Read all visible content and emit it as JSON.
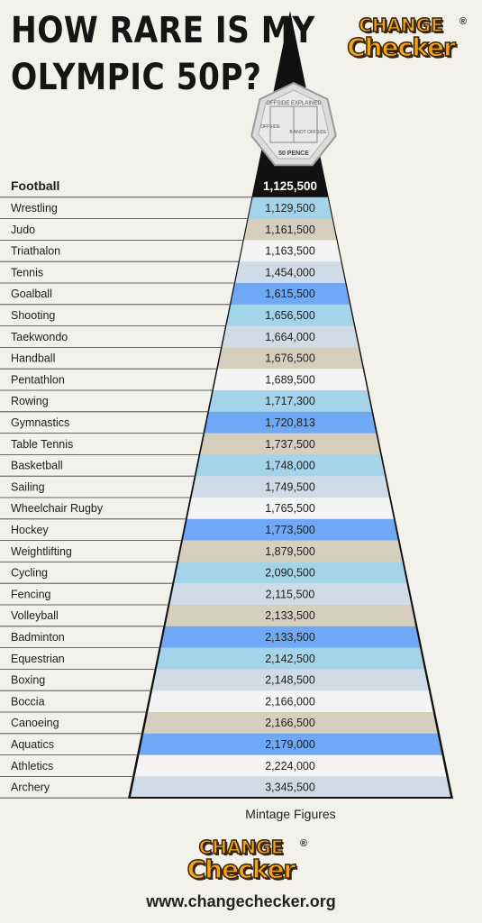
{
  "title_lines": [
    "HOW RARE IS MY",
    "OLYMPIC 50P?"
  ],
  "logo": {
    "line1": "CHANGE",
    "line2": "Checker",
    "reg": "®"
  },
  "coin": {
    "top_text": "OFFSIDE EXPLAINED",
    "left_text": "OFFSIDE",
    "right_text": "B ANOT OFFSIDE",
    "bottom_text": "50 PENCE"
  },
  "footer": {
    "url": "www.changechecker.org"
  },
  "colors": {
    "sky": "#a3d4ea",
    "sand": "#d6cfbd",
    "white": "#f4f4f4",
    "light_blue": "#cfdbe6",
    "blue": "#6fa8f4",
    "black": "#111111"
  },
  "chart_data": {
    "type": "bar",
    "xlabel": "Mintage Figures",
    "categories": [
      "Football",
      "Wrestling",
      "Judo",
      "Triathalon",
      "Tennis",
      "Goalball",
      "Shooting",
      "Taekwondo",
      "Handball",
      "Pentathlon",
      "Rowing",
      "Gymnastics",
      "Table Tennis",
      "Basketball",
      "Sailing",
      "Wheelchair Rugby",
      "Hockey",
      "Weightlifting",
      "Cycling",
      "Fencing",
      "Volleyball",
      "Badminton",
      "Equestrian",
      "Boxing",
      "Boccia",
      "Canoeing",
      "Aquatics",
      "Athletics",
      "Archery"
    ],
    "values": [
      1125500,
      1129500,
      1161500,
      1163500,
      1454000,
      1615500,
      1656500,
      1664000,
      1676500,
      1689500,
      1717300,
      1720813,
      1737500,
      1748000,
      1749500,
      1765500,
      1773500,
      1879500,
      2090500,
      2115500,
      2133500,
      2133500,
      2142500,
      2148500,
      2166000,
      2166500,
      2179000,
      2224000,
      3345500
    ],
    "value_labels": [
      "1,125,500",
      "1,129,500",
      "1,161,500",
      "1,163,500",
      "1,454,000",
      "1,615,500",
      "1,656,500",
      "1,664,000",
      "1,676,500",
      "1,689,500",
      "1,717,300",
      "1,720,813",
      "1,737,500",
      "1,748,000",
      "1,749,500",
      "1,765,500",
      "1,773,500",
      "1,879,500",
      "2,090,500",
      "2,115,500",
      "2,133,500",
      "2,133,500",
      "2,142,500",
      "2,148,500",
      "2,166,000",
      "2,166,500",
      "2,179,000",
      "2,224,000",
      "3,345,500"
    ],
    "row_colors": [
      "black",
      "sky",
      "sand",
      "white",
      "light_blue",
      "blue",
      "sky",
      "light_blue",
      "sand",
      "white",
      "sky",
      "blue",
      "sand",
      "sky",
      "light_blue",
      "white",
      "blue",
      "sand",
      "sky",
      "light_blue",
      "sand",
      "blue",
      "sky",
      "light_blue",
      "white",
      "sand",
      "blue",
      "white",
      "light_blue"
    ],
    "highlight": "Football"
  }
}
